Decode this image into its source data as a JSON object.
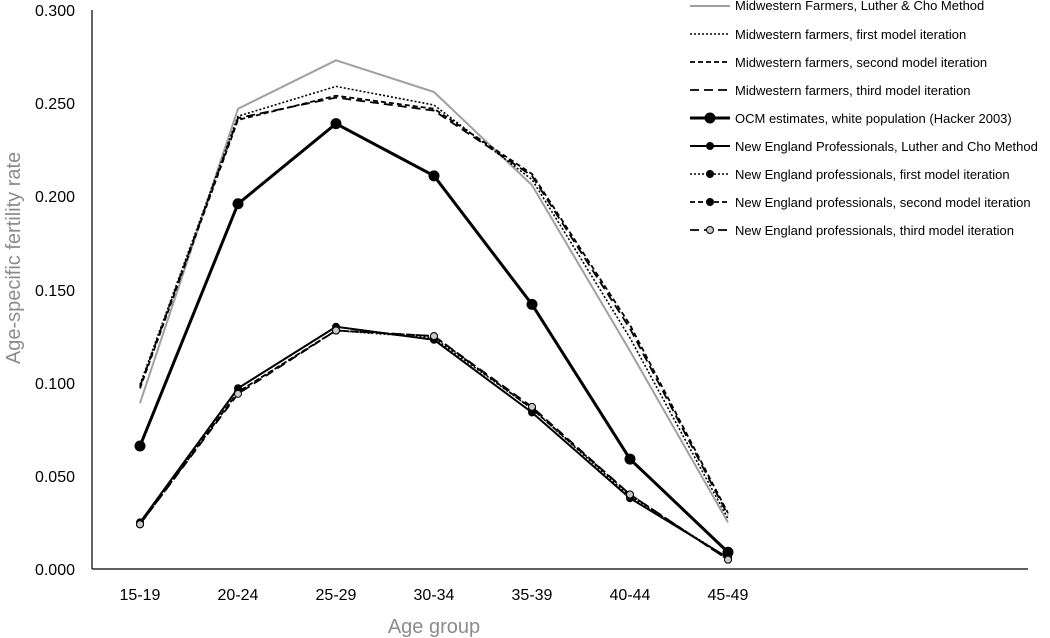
{
  "chart_data": {
    "type": "line",
    "xlabel": "Age group",
    "ylabel": "Age-specific fertility rate",
    "categories": [
      "15-19",
      "20-24",
      "25-29",
      "30-34",
      "35-39",
      "40-44",
      "45-49"
    ],
    "ylim": [
      0,
      0.3
    ],
    "yticks": [
      "0.000",
      "0.050",
      "0.100",
      "0.150",
      "0.200",
      "0.250",
      "0.300"
    ],
    "grid": false,
    "legend_position": "top-right",
    "series": [
      {
        "name": "Midwestern Farmers, Luther & Cho Method",
        "color": "#a0a0a0",
        "values": [
          0.089,
          0.247,
          0.273,
          0.256,
          0.206,
          0.117,
          0.025
        ]
      },
      {
        "name": "Midwestern farmers, first model iteration",
        "color": "#000000",
        "values": [
          0.099,
          0.243,
          0.259,
          0.249,
          0.209,
          0.124,
          0.027
        ]
      },
      {
        "name": "Midwestern farmers, second model iteration",
        "color": "#000000",
        "values": [
          0.097,
          0.241,
          0.254,
          0.247,
          0.212,
          0.131,
          0.03
        ]
      },
      {
        "name": "Midwestern farmers, third model iteration",
        "color": "#000000",
        "values": [
          0.098,
          0.242,
          0.253,
          0.246,
          0.211,
          0.129,
          0.029
        ]
      },
      {
        "name": "OCM estimates, white population (Hacker 2003)",
        "color": "#000000",
        "values": [
          0.066,
          0.196,
          0.239,
          0.211,
          0.142,
          0.059,
          0.009
        ]
      },
      {
        "name": "New England Professionals, Luther and Cho Method",
        "color": "#000000",
        "values": [
          0.025,
          0.097,
          0.13,
          0.123,
          0.084,
          0.038,
          0.006
        ]
      },
      {
        "name": "New England professionals, first model iteration",
        "color": "#000000",
        "values": [
          0.024,
          0.095,
          0.128,
          0.124,
          0.086,
          0.039,
          0.006
        ]
      },
      {
        "name": "New England professionals, second model iteration",
        "color": "#000000",
        "values": [
          0.024,
          0.095,
          0.128,
          0.125,
          0.086,
          0.04,
          0.005
        ]
      },
      {
        "name": "New England professionals, third model iteration",
        "color": "#000000",
        "values": [
          0.024,
          0.094,
          0.128,
          0.125,
          0.087,
          0.04,
          0.005
        ]
      }
    ]
  }
}
